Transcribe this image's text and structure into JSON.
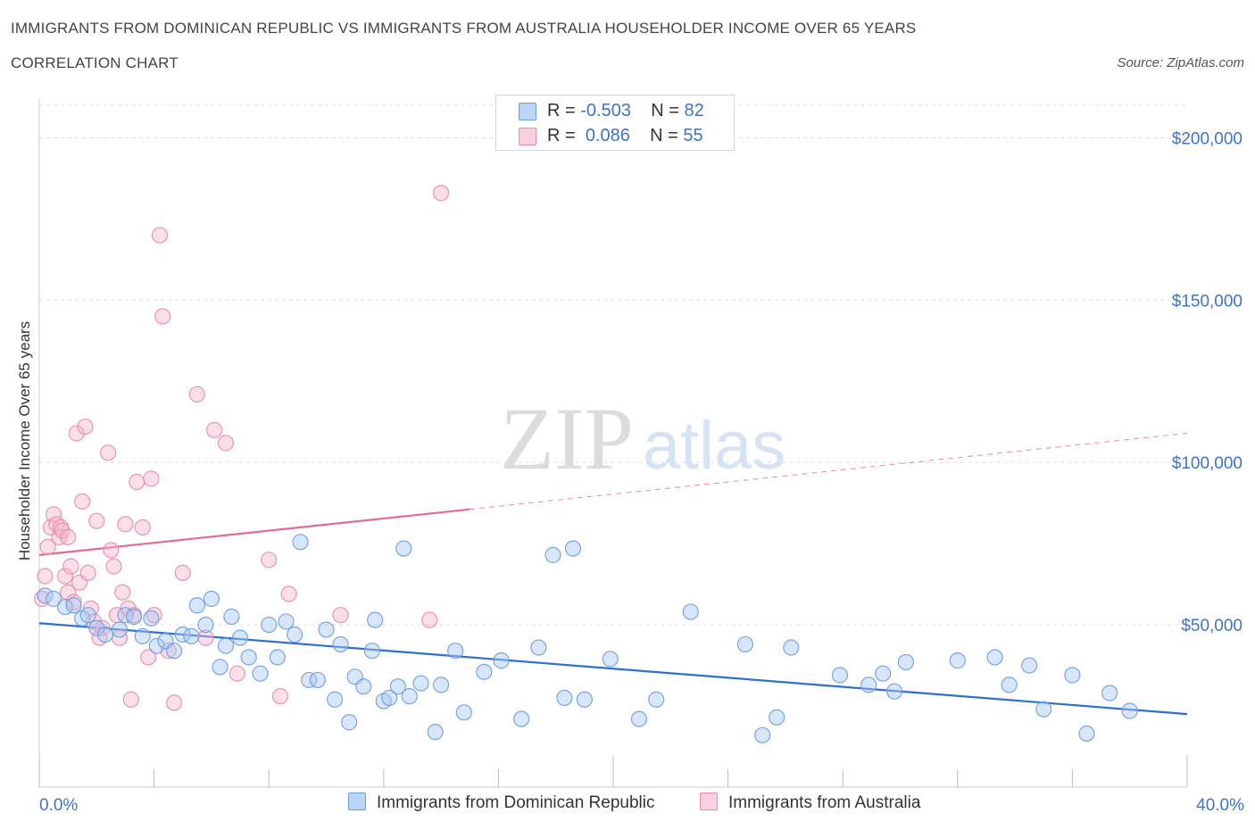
{
  "header": {
    "title": "IMMIGRANTS FROM DOMINICAN REPUBLIC VS IMMIGRANTS FROM AUSTRALIA HOUSEHOLDER INCOME OVER 65 YEARS",
    "subtitle": "CORRELATION CHART",
    "source": "Source: ZipAtlas.com"
  },
  "watermark": {
    "zip": "ZIP",
    "atlas": "atlas"
  },
  "legend_stats": [
    {
      "r_label": "R = ",
      "r_value": "-0.503",
      "n_label": "N = ",
      "n_value": "82",
      "color": "#a9c8f2"
    },
    {
      "r_label": "R = ",
      "r_value": "0.086",
      "n_label": "N = ",
      "n_value": "55",
      "color": "#f6b8cc"
    }
  ],
  "colors": {
    "blue_fill": "#a9c8f2",
    "blue_stroke": "#6d9be0",
    "blue_line": "#2f6fce",
    "pink_fill": "#f6b8cc",
    "pink_stroke": "#e88aaa",
    "pink_line": "#e26b97",
    "axis_text": "#3f73c4",
    "grid": "#dddddd"
  },
  "chart_data": {
    "type": "scatter",
    "title": "IMMIGRANTS FROM DOMINICAN REPUBLIC VS IMMIGRANTS FROM AUSTRALIA HOUSEHOLDER INCOME OVER 65 YEARS",
    "xlabel": "",
    "ylabel": "Householder Income Over 65 years",
    "xlim": [
      0,
      40
    ],
    "ylim": [
      0,
      210000
    ],
    "x_tick_labels": [
      "0.0%",
      "40.0%"
    ],
    "y_ticks": [
      50000,
      100000,
      150000,
      200000
    ],
    "y_tick_labels": [
      "$50,000",
      "$100,000",
      "$150,000",
      "$200,000"
    ],
    "grid": true,
    "legend_position": "bottom",
    "series": [
      {
        "name": "Immigrants from Dominican Republic",
        "color": "#a9c8f2",
        "trend": {
          "x0": 0,
          "y0": 50500,
          "x1": 40,
          "y1": 22500,
          "dashed_from": null
        },
        "points": [
          [
            0.2,
            59000
          ],
          [
            0.5,
            58000
          ],
          [
            0.9,
            55500
          ],
          [
            1.2,
            56000
          ],
          [
            1.5,
            52000
          ],
          [
            1.7,
            53000
          ],
          [
            2.0,
            49000
          ],
          [
            2.3,
            47000
          ],
          [
            2.8,
            48500
          ],
          [
            3.0,
            53000
          ],
          [
            3.3,
            52500
          ],
          [
            3.6,
            46500
          ],
          [
            3.9,
            52000
          ],
          [
            4.1,
            43500
          ],
          [
            4.4,
            45000
          ],
          [
            4.7,
            42000
          ],
          [
            5.0,
            47000
          ],
          [
            5.3,
            46500
          ],
          [
            5.5,
            56000
          ],
          [
            5.8,
            50000
          ],
          [
            6.0,
            58000
          ],
          [
            6.3,
            37000
          ],
          [
            6.5,
            43500
          ],
          [
            6.7,
            52500
          ],
          [
            7.0,
            46000
          ],
          [
            7.3,
            40000
          ],
          [
            7.7,
            35000
          ],
          [
            8.0,
            50000
          ],
          [
            8.3,
            40000
          ],
          [
            8.6,
            51000
          ],
          [
            8.9,
            47000
          ],
          [
            9.1,
            75500
          ],
          [
            9.4,
            33000
          ],
          [
            9.7,
            33000
          ],
          [
            10.0,
            48500
          ],
          [
            10.3,
            27000
          ],
          [
            10.5,
            44000
          ],
          [
            10.8,
            20000
          ],
          [
            11.0,
            34000
          ],
          [
            11.3,
            31000
          ],
          [
            11.6,
            42000
          ],
          [
            11.7,
            51500
          ],
          [
            12.0,
            26500
          ],
          [
            12.2,
            27500
          ],
          [
            12.5,
            31000
          ],
          [
            12.7,
            73500
          ],
          [
            12.9,
            28000
          ],
          [
            13.3,
            32000
          ],
          [
            13.8,
            17000
          ],
          [
            14.0,
            31500
          ],
          [
            14.5,
            42000
          ],
          [
            14.8,
            23000
          ],
          [
            15.5,
            35500
          ],
          [
            16.1,
            39000
          ],
          [
            16.8,
            21000
          ],
          [
            17.4,
            43000
          ],
          [
            17.9,
            71500
          ],
          [
            18.3,
            27500
          ],
          [
            18.6,
            73500
          ],
          [
            19.0,
            27000
          ],
          [
            19.9,
            39500
          ],
          [
            20.9,
            21000
          ],
          [
            21.5,
            27000
          ],
          [
            22.7,
            54000
          ],
          [
            24.6,
            44000
          ],
          [
            25.2,
            16000
          ],
          [
            25.7,
            21500
          ],
          [
            26.2,
            43000
          ],
          [
            27.9,
            34500
          ],
          [
            28.9,
            31500
          ],
          [
            29.4,
            35000
          ],
          [
            29.8,
            29500
          ],
          [
            30.2,
            38500
          ],
          [
            32.0,
            39000
          ],
          [
            33.3,
            40000
          ],
          [
            33.8,
            31500
          ],
          [
            34.5,
            37500
          ],
          [
            35.0,
            24000
          ],
          [
            36.0,
            34500
          ],
          [
            36.5,
            16500
          ],
          [
            37.3,
            29000
          ],
          [
            38.0,
            23500
          ]
        ]
      },
      {
        "name": "Immigrants from Australia",
        "color": "#f6b8cc",
        "trend": {
          "x0": 0,
          "y0": 71500,
          "x1": 40,
          "y1": 109000,
          "dashed_from": 15
        },
        "points": [
          [
            0.1,
            58000
          ],
          [
            0.2,
            65000
          ],
          [
            0.3,
            74000
          ],
          [
            0.4,
            80000
          ],
          [
            0.5,
            84000
          ],
          [
            0.6,
            81000
          ],
          [
            0.7,
            77000
          ],
          [
            0.75,
            80000
          ],
          [
            0.8,
            79000
          ],
          [
            0.9,
            65000
          ],
          [
            1.0,
            60000
          ],
          [
            1.0,
            77000
          ],
          [
            1.1,
            68000
          ],
          [
            1.2,
            57000
          ],
          [
            1.3,
            109000
          ],
          [
            1.4,
            63000
          ],
          [
            1.5,
            88000
          ],
          [
            1.6,
            111000
          ],
          [
            1.7,
            66000
          ],
          [
            1.8,
            55000
          ],
          [
            1.9,
            51000
          ],
          [
            2.0,
            82000
          ],
          [
            2.1,
            46000
          ],
          [
            2.2,
            49000
          ],
          [
            2.4,
            103000
          ],
          [
            2.5,
            73000
          ],
          [
            2.6,
            68000
          ],
          [
            2.7,
            53000
          ],
          [
            2.8,
            46000
          ],
          [
            2.9,
            60000
          ],
          [
            3.0,
            81000
          ],
          [
            3.1,
            55000
          ],
          [
            3.2,
            27000
          ],
          [
            3.3,
            53000
          ],
          [
            3.4,
            94000
          ],
          [
            3.6,
            80000
          ],
          [
            3.8,
            40000
          ],
          [
            3.9,
            95000
          ],
          [
            4.0,
            53000
          ],
          [
            4.2,
            170000
          ],
          [
            4.3,
            145000
          ],
          [
            4.5,
            42000
          ],
          [
            4.7,
            26000
          ],
          [
            5.0,
            66000
          ],
          [
            5.5,
            121000
          ],
          [
            5.8,
            46000
          ],
          [
            6.1,
            110000
          ],
          [
            6.5,
            106000
          ],
          [
            6.9,
            35000
          ],
          [
            8.0,
            70000
          ],
          [
            8.4,
            28000
          ],
          [
            8.7,
            59500
          ],
          [
            10.5,
            53000
          ],
          [
            13.6,
            51500
          ],
          [
            14.0,
            183000
          ]
        ]
      }
    ]
  }
}
